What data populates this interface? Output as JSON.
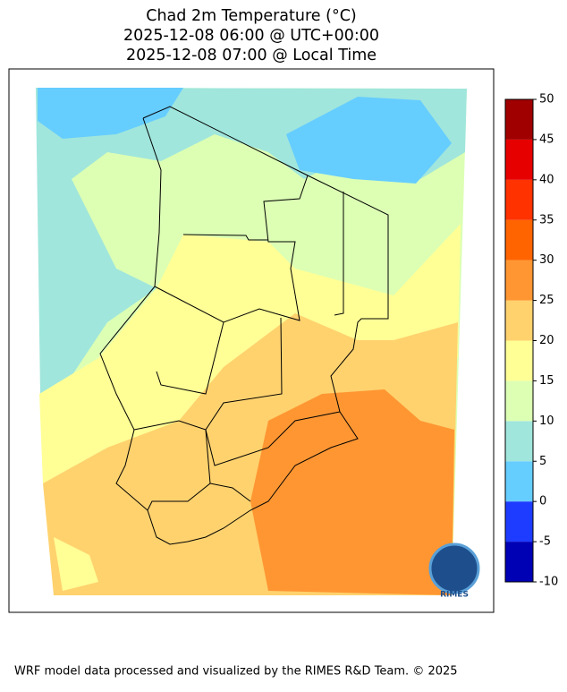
{
  "title_lines": [
    "Chad 2m Temperature (°C)",
    "2025-12-08 06:00 @ UTC+00:00",
    "2025-12-08 07:00 @ Local Time"
  ],
  "colorbar": {
    "levels": [
      -10,
      -5,
      0,
      5,
      10,
      15,
      20,
      25,
      30,
      35,
      40,
      45,
      50
    ],
    "colors": [
      "#0000b4",
      "#1e3cff",
      "#66cdff",
      "#a0e6dc",
      "#dcffb4",
      "#ffff96",
      "#ffd26e",
      "#ff9632",
      "#ff6400",
      "#ff3200",
      "#e60000",
      "#a00000"
    ]
  },
  "logo_text": "RIMES",
  "footer": "WRF model data processed and visualized by the RIMES R&D Team. © 2025"
}
